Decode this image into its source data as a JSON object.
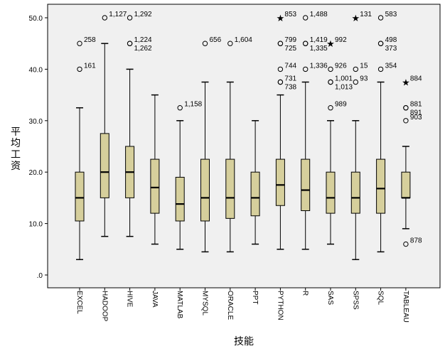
{
  "chart_data": {
    "type": "boxplot",
    "xlabel": "技能",
    "ylabel": "平均工资",
    "ylim": [
      0,
      52
    ],
    "yticks": [
      0,
      10,
      20,
      30,
      40,
      50
    ],
    "ytick_labels": [
      ".0",
      "10.0",
      "20.0",
      "30.0",
      "40.0",
      "50.0"
    ],
    "box_color": "#d6cf9c",
    "plot_bg": "#f0f0f0",
    "categories": [
      "EXCEL",
      "HADOOP",
      "HIVE",
      "JAVA",
      "MATLAB",
      "MYSQL",
      "ORACLE",
      "PPT",
      "PYTHON",
      "R",
      "SAS",
      "SPSS",
      "SQL",
      "TABLEAU"
    ],
    "boxes": [
      {
        "category": "EXCEL",
        "whisker_low": 3,
        "q1": 10.5,
        "median": 15,
        "q3": 20,
        "whisker_high": 32.5,
        "outliers": [
          {
            "y": 45,
            "label": "258",
            "marker": "circle"
          },
          {
            "y": 40,
            "label": "161",
            "marker": "circle"
          }
        ]
      },
      {
        "category": "HADOOP",
        "whisker_low": 7.5,
        "q1": 15,
        "median": 20,
        "q3": 27.5,
        "whisker_high": 45,
        "outliers": [
          {
            "y": 50,
            "label": "1,127",
            "marker": "circle"
          }
        ]
      },
      {
        "category": "HIVE",
        "whisker_low": 7.5,
        "q1": 15,
        "median": 20,
        "q3": 25,
        "whisker_high": 40,
        "outliers": [
          {
            "y": 50,
            "label": "1,292",
            "marker": "circle"
          },
          {
            "y": 45,
            "label": "1,224",
            "marker": "circle"
          },
          {
            "y": 45,
            "label": "1,262",
            "marker": "circle"
          }
        ]
      },
      {
        "category": "JAVA",
        "whisker_low": 6,
        "q1": 12,
        "median": 17,
        "q3": 22.5,
        "whisker_high": 35,
        "outliers": []
      },
      {
        "category": "MATLAB",
        "whisker_low": 5,
        "q1": 10.5,
        "median": 13.8,
        "q3": 19,
        "whisker_high": 30,
        "outliers": [
          {
            "y": 32.5,
            "label": "1,158",
            "marker": "circle"
          }
        ]
      },
      {
        "category": "MYSQL",
        "whisker_low": 4.5,
        "q1": 10.5,
        "median": 15,
        "q3": 22.5,
        "whisker_high": 37.5,
        "outliers": [
          {
            "y": 45,
            "label": "656",
            "marker": "circle"
          }
        ]
      },
      {
        "category": "ORACLE",
        "whisker_low": 4.5,
        "q1": 11,
        "median": 15,
        "q3": 22.5,
        "whisker_high": 37.5,
        "outliers": [
          {
            "y": 45,
            "label": "1,604",
            "marker": "circle"
          }
        ]
      },
      {
        "category": "PPT",
        "whisker_low": 6,
        "q1": 11.5,
        "median": 15,
        "q3": 20,
        "whisker_high": 30,
        "outliers": []
      },
      {
        "category": "PYTHON",
        "whisker_low": 5,
        "q1": 13.5,
        "median": 17.5,
        "q3": 22.5,
        "whisker_high": 35,
        "outliers": [
          {
            "y": 50,
            "label": "853",
            "marker": "star"
          },
          {
            "y": 45,
            "label": "799",
            "marker": "circle"
          },
          {
            "y": 45,
            "label": "725",
            "marker": "circle"
          },
          {
            "y": 40,
            "label": "744",
            "marker": "circle"
          },
          {
            "y": 37.5,
            "label": "731",
            "marker": "circle"
          },
          {
            "y": 37.5,
            "label": "738",
            "marker": "circle"
          }
        ]
      },
      {
        "category": "R",
        "whisker_low": 5,
        "q1": 12.5,
        "median": 16.5,
        "q3": 22.5,
        "whisker_high": 37.5,
        "outliers": [
          {
            "y": 50,
            "label": "1,488",
            "marker": "circle"
          },
          {
            "y": 45,
            "label": "1,419",
            "marker": "circle"
          },
          {
            "y": 45,
            "label": "1,335",
            "marker": "circle"
          },
          {
            "y": 40,
            "label": "1,336",
            "marker": "circle"
          }
        ]
      },
      {
        "category": "SAS",
        "whisker_low": 6,
        "q1": 12,
        "median": 15,
        "q3": 20,
        "whisker_high": 30,
        "outliers": [
          {
            "y": 45,
            "label": "992",
            "marker": "star"
          },
          {
            "y": 40,
            "label": "926",
            "marker": "circle"
          },
          {
            "y": 37.5,
            "label": "1,001",
            "marker": "circle"
          },
          {
            "y": 37.5,
            "label": "1,013",
            "marker": "circle"
          },
          {
            "y": 32.5,
            "label": "989",
            "marker": "circle"
          }
        ]
      },
      {
        "category": "SPSS",
        "whisker_low": 3,
        "q1": 12,
        "median": 15,
        "q3": 20,
        "whisker_high": 30,
        "outliers": [
          {
            "y": 50,
            "label": "131",
            "marker": "star"
          },
          {
            "y": 40,
            "label": "15",
            "marker": "circle"
          },
          {
            "y": 37.5,
            "label": "93",
            "marker": "circle"
          }
        ]
      },
      {
        "category": "SQL",
        "whisker_low": 4.5,
        "q1": 12,
        "median": 16.8,
        "q3": 22.5,
        "whisker_high": 37.5,
        "outliers": [
          {
            "y": 50,
            "label": "583",
            "marker": "circle"
          },
          {
            "y": 45,
            "label": "498",
            "marker": "circle"
          },
          {
            "y": 45,
            "label": "373",
            "marker": "circle"
          },
          {
            "y": 40,
            "label": "354",
            "marker": "circle"
          }
        ]
      },
      {
        "category": "TABLEAU",
        "whisker_low": 9,
        "q1": 15,
        "median": 15,
        "q3": 20,
        "whisker_high": 25,
        "outliers": [
          {
            "y": 37.5,
            "label": "884",
            "marker": "star"
          },
          {
            "y": 32.5,
            "label": "881",
            "marker": "circle"
          },
          {
            "y": 32.5,
            "label": "891",
            "marker": "circle"
          },
          {
            "y": 30,
            "label": "903",
            "marker": "circle"
          },
          {
            "y": 6,
            "label": "878",
            "marker": "circle"
          }
        ]
      }
    ]
  }
}
